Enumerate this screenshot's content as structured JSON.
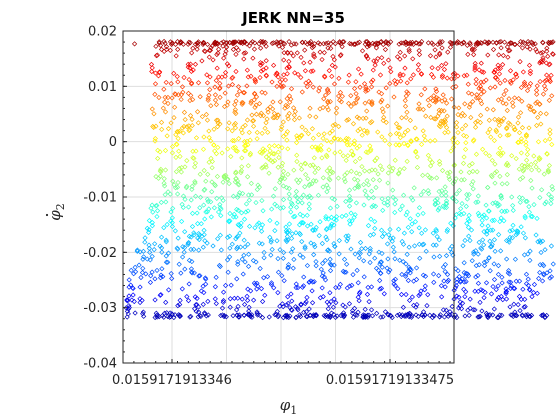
{
  "chart_data": {
    "type": "scatter",
    "title": "JERK NN=35",
    "xlabel": {
      "base": "φ",
      "sub": "1"
    },
    "ylabel": {
      "base": "φ",
      "sub": "2",
      "dot": true
    },
    "x_ticks": [
      "0.0159171913346",
      "0.0159171913347"
    ],
    "x_ticks_display": [
      "0.0159171913346",
      "0.015917191334 75"
    ],
    "y_ticks": [
      "0.02",
      "0.01",
      "0",
      "-0.01",
      "-0.02",
      "-0.03",
      "-0.04"
    ],
    "ylim": [
      -0.04,
      0.02
    ],
    "grid": true,
    "marker": "diamond",
    "colormap": "jet (by y value)",
    "point_count": 2600,
    "region": {
      "top_plateau_y": 0.0181,
      "bottom_y": -0.0318,
      "left_edge_at_top_x": 0.0159171913345893,
      "left_edge_at_bottom_x": 0.0159171913345743,
      "right_edge_x": 0.015917191334775,
      "right_bottom_x": 0.01591719133476
    }
  }
}
